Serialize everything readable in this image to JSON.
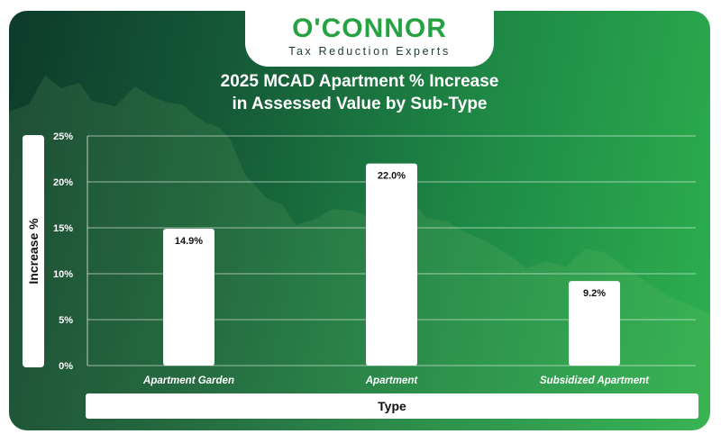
{
  "brand": {
    "name": "O'CONNOR",
    "tagline": "Tax Reduction Experts",
    "accent_color": "#27a243"
  },
  "chart_data": {
    "type": "bar",
    "title_lines": [
      "2025 MCAD Apartment % Increase",
      "in Assessed Value by Sub-Type"
    ],
    "xlabel": "Type",
    "ylabel": "Increase %",
    "categories": [
      "Apartment Garden",
      "Apartment",
      "Subsidized Apartment"
    ],
    "values": [
      14.9,
      22.0,
      9.2
    ],
    "data_labels": [
      "14.9%",
      "22.0%",
      "9.2%"
    ],
    "ylim": [
      0,
      25
    ],
    "yticks": [
      0,
      5,
      10,
      15,
      20,
      25
    ],
    "ytick_labels": [
      "0%",
      "5%",
      "10%",
      "15%",
      "20%",
      "25%"
    ],
    "grid": true,
    "bar_color": "#ffffff"
  }
}
